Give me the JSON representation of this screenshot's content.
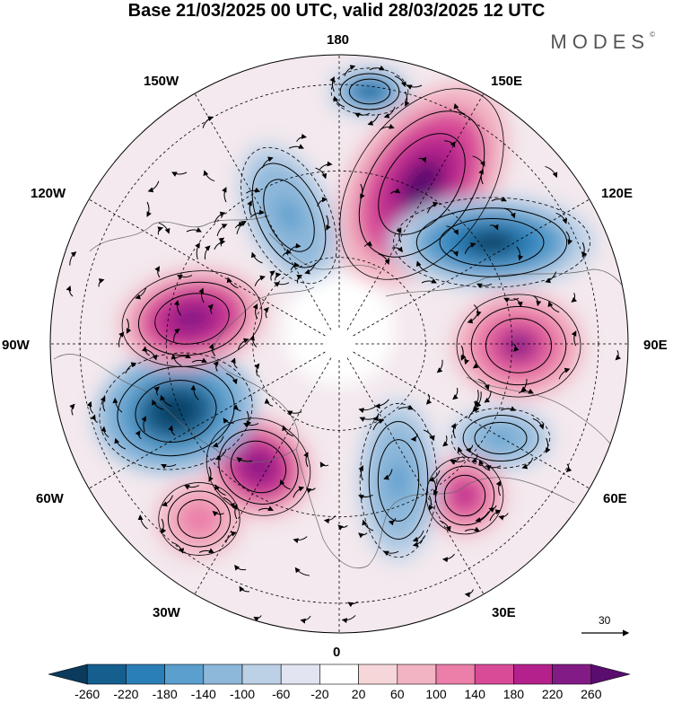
{
  "title": "Base 21/03/2025 00 UTC, valid 28/03/2025 12 UTC",
  "brand": {
    "name": "MODES",
    "mark": "©"
  },
  "longitude_labels": {
    "top": "180",
    "bottom": "0",
    "left": "90W",
    "right": "90E",
    "upper_left_1": "150W",
    "upper_left_2": "120W",
    "lower_left_1": "60W",
    "lower_left_2": "30W",
    "upper_right_1": "150E",
    "upper_right_2": "120E",
    "lower_right_1": "60E",
    "lower_right_2": "30E"
  },
  "reference_vector": {
    "label": "30"
  },
  "colorbar": {
    "colors": [
      "#0b3a5c",
      "#155f8e",
      "#2b7fb8",
      "#5a9fcd",
      "#8eb8da",
      "#bcd0e6",
      "#e2e4f1",
      "#ffffff",
      "#f7d6d9",
      "#f2b3c2",
      "#eb7fa9",
      "#d94b97",
      "#b4218c",
      "#831b86",
      "#5a0d6e"
    ],
    "labels": [
      "-260",
      "-220",
      "-180",
      "-140",
      "-100",
      "-60",
      "-20",
      "20",
      "60",
      "100",
      "140",
      "180",
      "220",
      "260"
    ]
  },
  "anomaly_centers": [
    {
      "sign": "negative",
      "strength": 0.85,
      "region": "North Pacific near 150W"
    },
    {
      "sign": "positive",
      "strength": 0.95,
      "region": "Chukchi/East Siberian Sea"
    },
    {
      "sign": "negative",
      "strength": 0.95,
      "region": "Eastern Siberia 120E"
    },
    {
      "sign": "positive",
      "strength": 0.75,
      "region": "Central Siberia 90E"
    },
    {
      "sign": "negative",
      "strength": 0.5,
      "region": "Western Siberia"
    },
    {
      "sign": "positive",
      "strength": 0.6,
      "region": "Caspian region 60E"
    },
    {
      "sign": "negative",
      "strength": 0.55,
      "region": "Scandinavia / Central Europe"
    },
    {
      "sign": "positive",
      "strength": 0.9,
      "region": "Mid Atlantic 60W"
    },
    {
      "sign": "negative",
      "strength": 1.0,
      "region": "Hudson Bay / Labrador"
    },
    {
      "sign": "positive",
      "strength": 0.9,
      "region": "Northwest Canada"
    },
    {
      "sign": "negative",
      "strength": 0.5,
      "region": "Subtropical Atlantic 30W"
    },
    {
      "sign": "positive",
      "strength": 0.35,
      "region": "Gulf of Alaska 140W"
    }
  ]
}
